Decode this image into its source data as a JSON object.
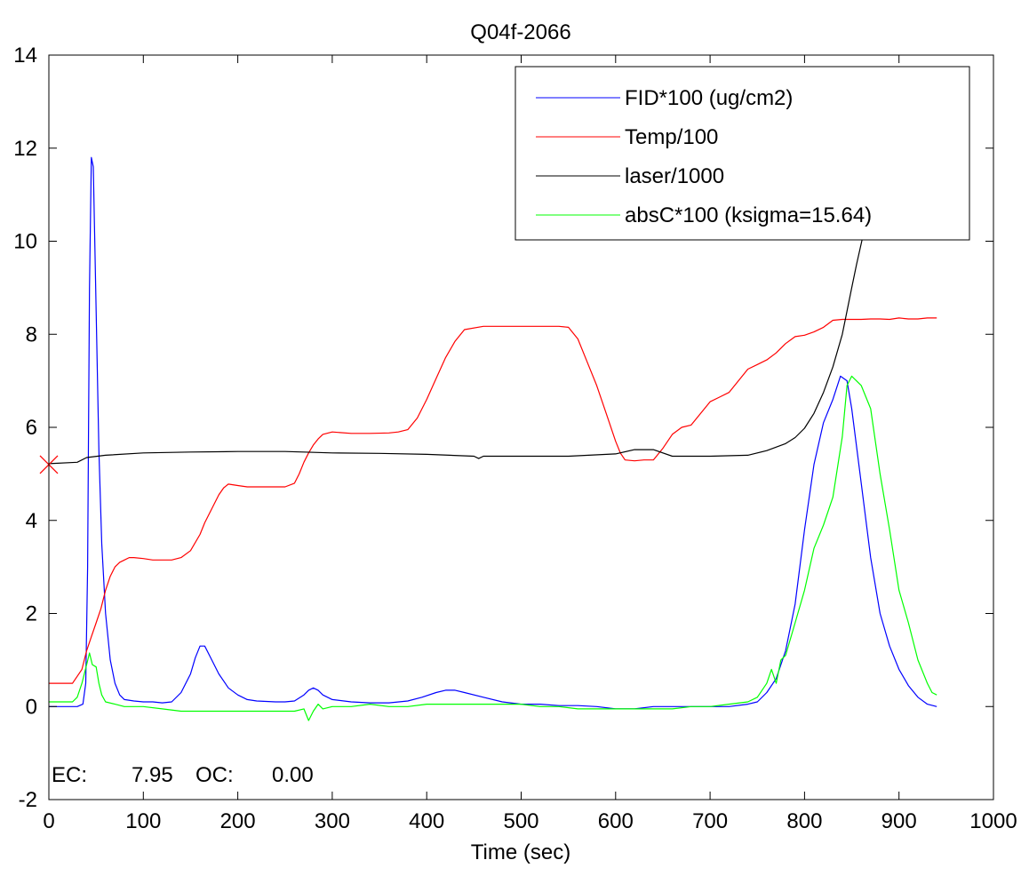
{
  "chart_data": {
    "type": "line",
    "title": "Q04f-2066",
    "xlabel": "Time (sec)",
    "ylabel": "",
    "xlim": [
      0,
      1000
    ],
    "ylim": [
      -2,
      14
    ],
    "xticks": [
      0,
      100,
      200,
      300,
      400,
      500,
      600,
      700,
      800,
      900,
      1000
    ],
    "yticks": [
      -2,
      0,
      2,
      4,
      6,
      8,
      10,
      12,
      14
    ],
    "grid": false,
    "legend_position": "top-right",
    "annotation": {
      "ec_label": "EC:",
      "ec_value": "7.95",
      "oc_label": "OC:",
      "oc_value": "0.00"
    },
    "marker": {
      "x": 0,
      "y": 5.2,
      "symbol": "x",
      "color": "#ff0000"
    },
    "series": [
      {
        "name": "FID*100 (ug/cm2)",
        "color": "#0000ff",
        "x": [
          0,
          30,
          36,
          39,
          41,
          43,
          45,
          47,
          50,
          53,
          56,
          60,
          65,
          70,
          75,
          80,
          90,
          100,
          110,
          120,
          130,
          140,
          150,
          155,
          160,
          165,
          170,
          180,
          190,
          200,
          210,
          220,
          240,
          250,
          260,
          270,
          275,
          280,
          285,
          290,
          300,
          320,
          340,
          360,
          380,
          395,
          410,
          420,
          430,
          440,
          460,
          480,
          500,
          520,
          540,
          560,
          580,
          600,
          620,
          640,
          660,
          680,
          700,
          720,
          740,
          750,
          760,
          770,
          780,
          790,
          800,
          810,
          820,
          830,
          838,
          845,
          850,
          860,
          870,
          880,
          890,
          900,
          910,
          920,
          930,
          940
        ],
        "y": [
          0.0,
          0.0,
          0.05,
          0.5,
          3.0,
          9.0,
          11.8,
          11.6,
          8.5,
          5.5,
          3.5,
          2.0,
          1.0,
          0.5,
          0.25,
          0.15,
          0.12,
          0.1,
          0.1,
          0.08,
          0.1,
          0.3,
          0.7,
          1.05,
          1.3,
          1.3,
          1.1,
          0.7,
          0.4,
          0.25,
          0.15,
          0.12,
          0.1,
          0.1,
          0.12,
          0.25,
          0.35,
          0.4,
          0.35,
          0.25,
          0.15,
          0.1,
          0.08,
          0.08,
          0.12,
          0.2,
          0.3,
          0.35,
          0.35,
          0.3,
          0.2,
          0.1,
          0.05,
          0.05,
          0.02,
          0.02,
          0.0,
          -0.05,
          -0.05,
          0.0,
          0.0,
          0.0,
          0.0,
          0.0,
          0.05,
          0.1,
          0.3,
          0.6,
          1.2,
          2.2,
          3.8,
          5.2,
          6.1,
          6.6,
          7.1,
          7.0,
          6.4,
          4.8,
          3.2,
          2.0,
          1.3,
          0.8,
          0.45,
          0.2,
          0.05,
          0.0
        ]
      },
      {
        "name": "Temp/100",
        "color": "#ff0000",
        "x": [
          0,
          25,
          35,
          40,
          45,
          50,
          55,
          60,
          65,
          70,
          75,
          80,
          85,
          90,
          100,
          110,
          120,
          130,
          140,
          150,
          160,
          165,
          170,
          175,
          180,
          185,
          190,
          200,
          210,
          220,
          230,
          240,
          250,
          260,
          265,
          270,
          275,
          280,
          285,
          290,
          300,
          320,
          340,
          360,
          370,
          380,
          390,
          400,
          410,
          420,
          430,
          440,
          460,
          480,
          500,
          520,
          540,
          550,
          560,
          570,
          580,
          590,
          600,
          605,
          610,
          620,
          630,
          640,
          650,
          660,
          670,
          680,
          690,
          700,
          710,
          720,
          730,
          740,
          750,
          760,
          770,
          780,
          790,
          800,
          810,
          820,
          830,
          840,
          850,
          860,
          870,
          880,
          890,
          900,
          910,
          920,
          930,
          940
        ],
        "y": [
          0.5,
          0.5,
          0.8,
          1.2,
          1.5,
          1.8,
          2.1,
          2.5,
          2.8,
          3.0,
          3.1,
          3.15,
          3.2,
          3.2,
          3.18,
          3.15,
          3.15,
          3.15,
          3.2,
          3.35,
          3.7,
          3.95,
          4.15,
          4.35,
          4.55,
          4.7,
          4.78,
          4.75,
          4.72,
          4.72,
          4.72,
          4.72,
          4.72,
          4.8,
          5.0,
          5.25,
          5.45,
          5.62,
          5.75,
          5.85,
          5.9,
          5.87,
          5.87,
          5.88,
          5.9,
          5.95,
          6.2,
          6.6,
          7.05,
          7.5,
          7.85,
          8.1,
          8.17,
          8.17,
          8.17,
          8.17,
          8.17,
          8.15,
          7.9,
          7.4,
          6.9,
          6.3,
          5.7,
          5.45,
          5.3,
          5.28,
          5.3,
          5.3,
          5.55,
          5.85,
          6.0,
          6.05,
          6.3,
          6.55,
          6.65,
          6.75,
          7.0,
          7.25,
          7.35,
          7.45,
          7.6,
          7.8,
          7.95,
          7.98,
          8.05,
          8.15,
          8.3,
          8.32,
          8.32,
          8.32,
          8.33,
          8.33,
          8.32,
          8.35,
          8.33,
          8.33,
          8.35,
          8.35
        ]
      },
      {
        "name": "laser/1000",
        "color": "#000000",
        "x": [
          0,
          30,
          40,
          60,
          100,
          150,
          200,
          250,
          300,
          350,
          400,
          450,
          455,
          460,
          500,
          550,
          600,
          620,
          640,
          660,
          700,
          740,
          760,
          780,
          790,
          800,
          810,
          820,
          830,
          840,
          845,
          850,
          855,
          860,
          865,
          870
        ],
        "y": [
          5.22,
          5.25,
          5.35,
          5.4,
          5.45,
          5.47,
          5.48,
          5.48,
          5.45,
          5.44,
          5.42,
          5.38,
          5.33,
          5.38,
          5.38,
          5.38,
          5.43,
          5.52,
          5.52,
          5.38,
          5.38,
          5.4,
          5.5,
          5.65,
          5.78,
          5.98,
          6.3,
          6.75,
          7.3,
          8.0,
          8.5,
          9.0,
          9.5,
          9.95,
          10.4,
          10.85
        ]
      },
      {
        "name": "absC*100 (ksigma=15.64)",
        "color": "#00ff00",
        "x": [
          0,
          25,
          30,
          35,
          40,
          43,
          46,
          50,
          53,
          56,
          60,
          70,
          80,
          90,
          100,
          120,
          140,
          150,
          160,
          180,
          200,
          220,
          240,
          260,
          270,
          275,
          280,
          285,
          290,
          300,
          320,
          340,
          360,
          380,
          400,
          420,
          440,
          460,
          480,
          500,
          520,
          540,
          560,
          580,
          600,
          620,
          640,
          660,
          680,
          700,
          720,
          740,
          750,
          760,
          765,
          770,
          775,
          780,
          790,
          800,
          810,
          820,
          830,
          840,
          845,
          850,
          860,
          870,
          880,
          890,
          900,
          910,
          920,
          930,
          935,
          940
        ],
        "y": [
          0.1,
          0.1,
          0.2,
          0.5,
          0.9,
          1.15,
          0.9,
          0.85,
          0.5,
          0.25,
          0.1,
          0.05,
          0.0,
          0.0,
          0.0,
          -0.05,
          -0.1,
          -0.1,
          -0.1,
          -0.1,
          -0.1,
          -0.1,
          -0.1,
          -0.1,
          -0.05,
          -0.3,
          -0.1,
          0.05,
          -0.05,
          0.0,
          0.0,
          0.05,
          0.0,
          0.0,
          0.05,
          0.05,
          0.05,
          0.05,
          0.05,
          0.05,
          0.0,
          0.0,
          -0.05,
          -0.05,
          -0.05,
          -0.05,
          -0.05,
          -0.05,
          0.0,
          0.0,
          0.05,
          0.1,
          0.2,
          0.5,
          0.8,
          0.5,
          1.0,
          1.1,
          1.8,
          2.5,
          3.4,
          3.9,
          4.5,
          5.8,
          6.9,
          7.1,
          6.9,
          6.4,
          5.0,
          3.8,
          2.5,
          1.8,
          1.0,
          0.5,
          0.3,
          0.25
        ]
      }
    ]
  }
}
